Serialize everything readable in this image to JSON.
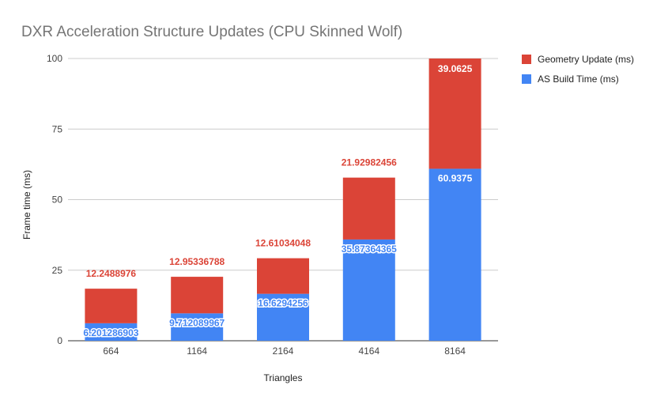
{
  "chart_data": {
    "type": "bar",
    "stacked": true,
    "title": "DXR Acceleration Structure Updates (CPU Skinned Wolf)",
    "xlabel": "Triangles",
    "ylabel": "Frame time (ms)",
    "categories": [
      "664",
      "1164",
      "2164",
      "4164",
      "8164"
    ],
    "ylim": [
      0,
      100
    ],
    "yticks": [
      0,
      25,
      50,
      75,
      100
    ],
    "grid": true,
    "legend": "right",
    "series": [
      {
        "name": "AS Build Time (ms)",
        "color": "#4285f4",
        "values": [
          6.201286903,
          9.712089967,
          16.6294256,
          35.87364365,
          60.9375
        ],
        "labels": [
          "6.201286903",
          "9.712089967",
          "16.6294256",
          "35.87364365",
          "60.9375"
        ]
      },
      {
        "name": "Geometry Update (ms)",
        "color": "#db4437",
        "values": [
          12.2488976,
          12.95336788,
          12.61034048,
          21.92982456,
          39.0625
        ],
        "labels": [
          "12.2488976",
          "12.95336788",
          "12.61034048",
          "21.92982456",
          "39.0625"
        ]
      }
    ]
  }
}
